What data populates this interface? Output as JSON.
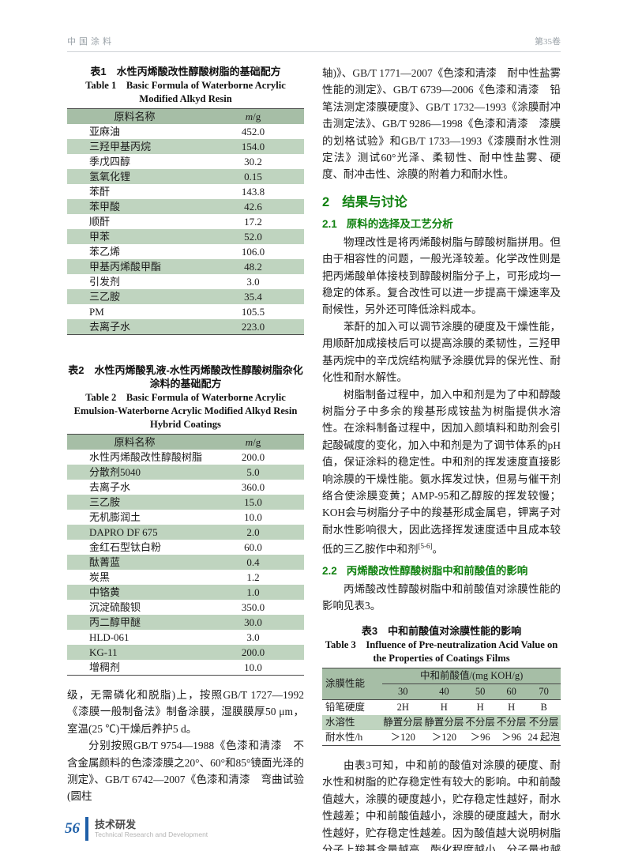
{
  "page": {
    "header_left": "中国涂料",
    "header_right": "第35卷"
  },
  "left_column": {
    "table1": {
      "caption_cn": "表1　水性丙烯酸改性醇酸树脂的基础配方",
      "caption_en": "Table 1　Basic Formula of Waterborne Acrylic Modified Alkyd Resin",
      "col_name": "原料名称",
      "unit_m": "m",
      "unit_rest": "/g",
      "rows": [
        [
          "亚麻油",
          "452.0"
        ],
        [
          "三羟甲基丙烷",
          "154.0"
        ],
        [
          "季戊四醇",
          "30.2"
        ],
        [
          "氢氧化锂",
          "0.15"
        ],
        [
          "苯酐",
          "143.8"
        ],
        [
          "苯甲酸",
          "42.6"
        ],
        [
          "顺酐",
          "17.2"
        ],
        [
          "甲苯",
          "52.0"
        ],
        [
          "苯乙烯",
          "106.0"
        ],
        [
          "甲基丙烯酸甲酯",
          "48.2"
        ],
        [
          "引发剂",
          "3.0"
        ],
        [
          "三乙胺",
          "35.4"
        ],
        [
          "PM",
          "105.5"
        ],
        [
          "去离子水",
          "223.0"
        ]
      ]
    },
    "table2": {
      "caption_cn": "表2　水性丙烯酸乳液-水性丙烯酸改性醇酸树脂杂化涂料的基础配方",
      "caption_en": "Table 2　Basic Formula of Waterborne Acrylic Emulsion-Waterborne Acrylic Modified Alkyd Resin Hybrid Coatings",
      "col_name": "原料名称",
      "unit_m": "m",
      "unit_rest": "/g",
      "rows": [
        [
          "水性丙烯酸改性醇酸树脂",
          "200.0"
        ],
        [
          "分散剂5040",
          "5.0"
        ],
        [
          "去离子水",
          "360.0"
        ],
        [
          "三乙胺",
          "15.0"
        ],
        [
          "无机膨润土",
          "10.0"
        ],
        [
          "DAPRO DF 675",
          "2.0"
        ],
        [
          "金红石型钛白粉",
          "60.0"
        ],
        [
          "酞菁蓝",
          "0.4"
        ],
        [
          "炭黑",
          "1.2"
        ],
        [
          "中铬黄",
          "1.0"
        ],
        [
          "沉淀硫酸钡",
          "350.0"
        ],
        [
          "丙二醇甲醚",
          "30.0"
        ],
        [
          "HLD-061",
          "3.0"
        ],
        [
          "KG-11",
          "200.0"
        ],
        [
          "增稠剂",
          "10.0"
        ]
      ]
    },
    "para1": "级，无需磷化和脱脂)上，按照GB/T 1727—1992《漆膜一般制备法》制备涂膜，湿膜膜厚50 μm，室温(25 ℃)干燥后养护5 d。",
    "para2": "分别按照GB/T 9754—1988《色漆和清漆　不含金属颜料的色漆漆膜之20°、60°和85°镜面光泽的测定》、GB/T 6742—2007《色漆和清漆　弯曲试验(圆柱"
  },
  "right_column": {
    "para_top": "轴)》、GB/T 1771—2007《色漆和清漆　耐中性盐雾性能的测定》、GB/T 6739—2006《色漆和清漆　铅笔法测定漆膜硬度》、GB/T 1732—1993《涂膜耐冲击测定法》、GB/T 9286—1998《色漆和清漆　漆膜的划格试验》和GB/T 1733—1993《漆膜耐水性测定法》测试60°光泽、柔韧性、耐中性盐雾、硬度、耐冲击性、涂膜的附着力和耐水性。",
    "h2_num": "2",
    "h2_text": "结果与讨论",
    "h21_num": "2.1",
    "h21_text": "原料的选择及工艺分析",
    "para_21a": "物理改性是将丙烯酸树脂与醇酸树脂拼用。但由于相容性的问题，一般光泽较差。化学改性则是把丙烯酸单体接枝到醇酸树脂分子上，可形成均一稳定的体系。复合改性可以进一步提高干燥速率及耐候性，另外还可降低涂料成本。",
    "para_21b": "苯酐的加入可以调节涂膜的硬度及干燥性能，用顺酐加成接枝后可以提高涂膜的柔韧性，三羟甲基丙烷中的辛戊烷结构赋予涂膜优异的保光性、耐化性和耐水解性。",
    "para_21c_text": "树脂制备过程中，加入中和剂是为了中和醇酸树脂分子中多余的羧基形成铵盐为树脂提供水溶性。在涂料制备过程中，因加入颜填料和助剂会引起酸碱度的变化，加入中和剂是为了调节体系的pH值，保证涂料的稳定性。中和剂的挥发速度直接影响涂膜的干燥性能。氨水挥发过快，但易与催干剂络合使涂膜变黄；AMP-95和乙醇胺的挥发较慢；KOH会与树脂分子中的羧基形成金属皂，钾离子对耐水性影响很大，因此选择挥发速度适中且成本较低的三乙胺作中和剂",
    "para_21c_sup": "[5-6]",
    "para_21c_tail": "。",
    "h22_num": "2.2",
    "h22_text": "丙烯酸改性醇酸树脂中和前酸值的影响",
    "para_22": "丙烯酸改性醇酸树脂中和前酸值对涂膜性能的影响见表3。",
    "table3": {
      "caption_cn": "表3　中和前酸值对涂膜性能的影响",
      "caption_en": "Table 3　Influence of Pre-neutralization Acid Value on the Properties of Coatings Films",
      "corner": "涂膜性能",
      "span_header": "中和前酸值/(mg KOH/g)",
      "acid_values": [
        "30",
        "40",
        "50",
        "60",
        "70"
      ],
      "rows": [
        {
          "label": "铅笔硬度",
          "values": [
            "2H",
            "H",
            "H",
            "H",
            "B"
          ]
        },
        {
          "label": "水溶性",
          "values": [
            "静置分层",
            "静置分层",
            "不分层",
            "不分层",
            "不分层"
          ]
        },
        {
          "label": "耐水性/h",
          "values": [
            "＞120",
            "＞120",
            "＞96",
            "＞96",
            "24 起泡"
          ]
        }
      ]
    },
    "para_bottom": "由表3可知，中和前的酸值对涂膜的硬度、耐水性和树脂的贮存稳定性有较大的影响。中和前酸值越大，涂膜的硬度越小，贮存稳定性越好，耐水性越差；中和前酸值越小，涂膜的硬度越大，耐水性越好，贮存稳定性越差。因为酸值越大说明树脂分子上羧基含量越高，酯化程度越小，分子量也越小，交联度小，涂膜"
  },
  "footer": {
    "page_number": "56",
    "section_cn": "技术研发",
    "section_en": "Technical Research and Development"
  },
  "colors": {
    "table_header_green": "#a6bea6",
    "table_stripe_green": "#bfd4bf",
    "heading_green": "#128212",
    "footer_blue": "#1e5fa8"
  }
}
